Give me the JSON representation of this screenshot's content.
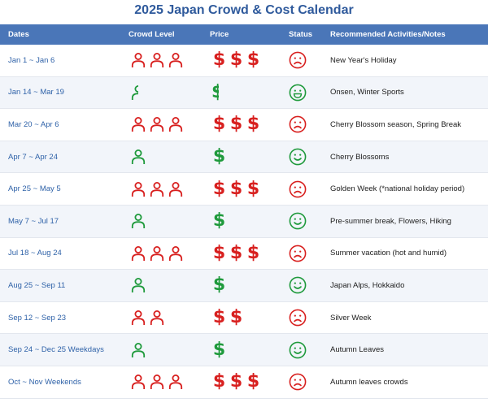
{
  "title": "2025 Japan Crowd & Cost Calendar",
  "headers": {
    "dates": "Dates",
    "crowd": "Crowd Level",
    "price": "Price",
    "status": "Status",
    "notes": "Recommended Activities/Notes"
  },
  "colors": {
    "high": "#d8201f",
    "low": "#1f9a3c",
    "header": "#4a76b8",
    "title": "#2f5a9c"
  },
  "rows": [
    {
      "dates": "Jan 1 ~ Jan 6",
      "crowd": 3,
      "price": 3,
      "status": "sad",
      "notes": "New Year's Holiday"
    },
    {
      "dates": "Jan 14 ~ Mar 19",
      "crowd": 0.5,
      "price": 0.5,
      "status": "very-happy",
      "notes": "Onsen, Winter Sports"
    },
    {
      "dates": "Mar 20 ~ Apr 6",
      "crowd": 3,
      "price": 3,
      "status": "sad",
      "notes": "Cherry Blossom season, Spring Break"
    },
    {
      "dates": "Apr 7 ~ Apr 24",
      "crowd": 1,
      "price": 1,
      "status": "happy",
      "notes": "Cherry Blossoms"
    },
    {
      "dates": "Apr 25 ~ May 5",
      "crowd": 3,
      "price": 3,
      "status": "sad",
      "notes": "Golden Week (*national holiday period)"
    },
    {
      "dates": "May 7 ~ Jul 17",
      "crowd": 1,
      "price": 1,
      "status": "happy",
      "notes": "Pre-summer break, Flowers, Hiking"
    },
    {
      "dates": "Jul 18 ~ Aug 24",
      "crowd": 3,
      "price": 3,
      "status": "sad",
      "notes": "Summer vacation (hot and humid)"
    },
    {
      "dates": "Aug 25 ~ Sep 11",
      "crowd": 1,
      "price": 1,
      "status": "happy",
      "notes": "Japan Alps, Hokkaido"
    },
    {
      "dates": "Sep 12 ~ Sep 23",
      "crowd": 2,
      "price": 2,
      "status": "sad",
      "notes": "Silver Week"
    },
    {
      "dates": "Sep 24 ~ Dec 25 Weekdays",
      "crowd": 1,
      "price": 1,
      "status": "happy",
      "notes": "Autumn Leaves"
    },
    {
      "dates": "Oct ~ Nov Weekends",
      "crowd": 3,
      "price": 3,
      "status": "sad",
      "notes": "Autumn leaves crowds"
    }
  ]
}
